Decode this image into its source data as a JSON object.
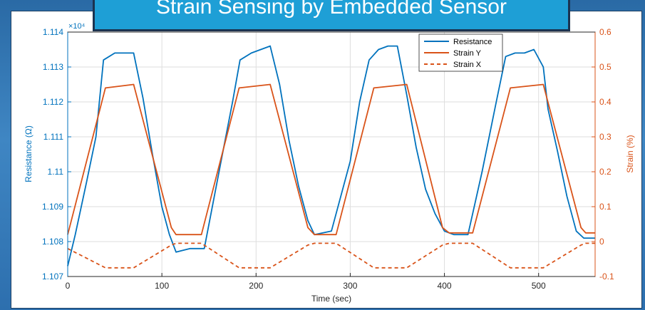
{
  "title": "Strain Sensing by Embedded Sensor",
  "chart_data": {
    "type": "line",
    "xlabel": "Time (sec)",
    "ylabel_left": "Resistance (Ω)",
    "ylabel_right": "Strain (%)",
    "left_exponent_label": "×10⁴",
    "xlim": [
      0,
      560
    ],
    "ylim_left": [
      1.107,
      1.114
    ],
    "ylim_right": [
      -0.1,
      0.6
    ],
    "x_ticks": [
      0,
      100,
      200,
      300,
      400,
      500
    ],
    "y_left_ticks": [
      "1.107",
      "1.108",
      "1.109",
      "1.11",
      "1.111",
      "1.112",
      "1.113",
      "1.114"
    ],
    "y_right_ticks": [
      "-0.1",
      "0",
      "0.1",
      "0.2",
      "0.3",
      "0.4",
      "0.5",
      "0.6"
    ],
    "grid": true,
    "legend_position": "top-right",
    "colors": {
      "resistance": "#0072BD",
      "strain": "#D95319"
    },
    "series": [
      {
        "name": "Resistance",
        "axis": "left",
        "style": "solid",
        "x": [
          0,
          8,
          20,
          30,
          38,
          50,
          60,
          70,
          80,
          90,
          100,
          108,
          115,
          130,
          145,
          155,
          165,
          175,
          183,
          195,
          205,
          215,
          225,
          235,
          245,
          255,
          262,
          280,
          300,
          310,
          320,
          330,
          340,
          350,
          360,
          370,
          380,
          390,
          400,
          410,
          425,
          440,
          455,
          465,
          475,
          485,
          495,
          505,
          510,
          520,
          530,
          540,
          548,
          560
        ],
        "y": [
          1.1073,
          1.1082,
          1.1097,
          1.111,
          1.1132,
          1.1134,
          1.1134,
          1.1134,
          1.1121,
          1.1105,
          1.109,
          1.1082,
          1.1077,
          1.1078,
          1.1078,
          1.1092,
          1.1106,
          1.112,
          1.1132,
          1.1134,
          1.1135,
          1.1136,
          1.1125,
          1.1109,
          1.1096,
          1.1086,
          1.1082,
          1.1083,
          1.1103,
          1.112,
          1.1132,
          1.1135,
          1.1136,
          1.1136,
          1.1122,
          1.1107,
          1.1095,
          1.1088,
          1.1083,
          1.1082,
          1.1082,
          1.11,
          1.112,
          1.1133,
          1.1134,
          1.1134,
          1.1135,
          1.113,
          1.1118,
          1.1106,
          1.1093,
          1.1083,
          1.1081,
          1.1081
        ]
      },
      {
        "name": "Strain Y",
        "axis": "right",
        "style": "solid",
        "x": [
          0,
          40,
          70,
          110,
          115,
          142,
          182,
          215,
          255,
          262,
          285,
          325,
          360,
          398,
          405,
          430,
          470,
          505,
          545,
          550,
          560
        ],
        "y": [
          0.02,
          0.44,
          0.45,
          0.04,
          0.02,
          0.02,
          0.44,
          0.45,
          0.04,
          0.02,
          0.02,
          0.44,
          0.45,
          0.04,
          0.025,
          0.025,
          0.44,
          0.45,
          0.04,
          0.025,
          0.025
        ]
      },
      {
        "name": "Strain X",
        "axis": "right",
        "style": "dashed",
        "x": [
          0,
          40,
          70,
          110,
          115,
          142,
          182,
          215,
          255,
          262,
          285,
          325,
          360,
          398,
          405,
          430,
          470,
          505,
          545,
          550,
          560
        ],
        "y": [
          -0.02,
          -0.075,
          -0.075,
          -0.01,
          -0.005,
          -0.005,
          -0.075,
          -0.075,
          -0.01,
          -0.005,
          -0.005,
          -0.075,
          -0.075,
          -0.01,
          -0.005,
          -0.005,
          -0.075,
          -0.075,
          -0.01,
          -0.005,
          -0.005
        ]
      }
    ]
  }
}
